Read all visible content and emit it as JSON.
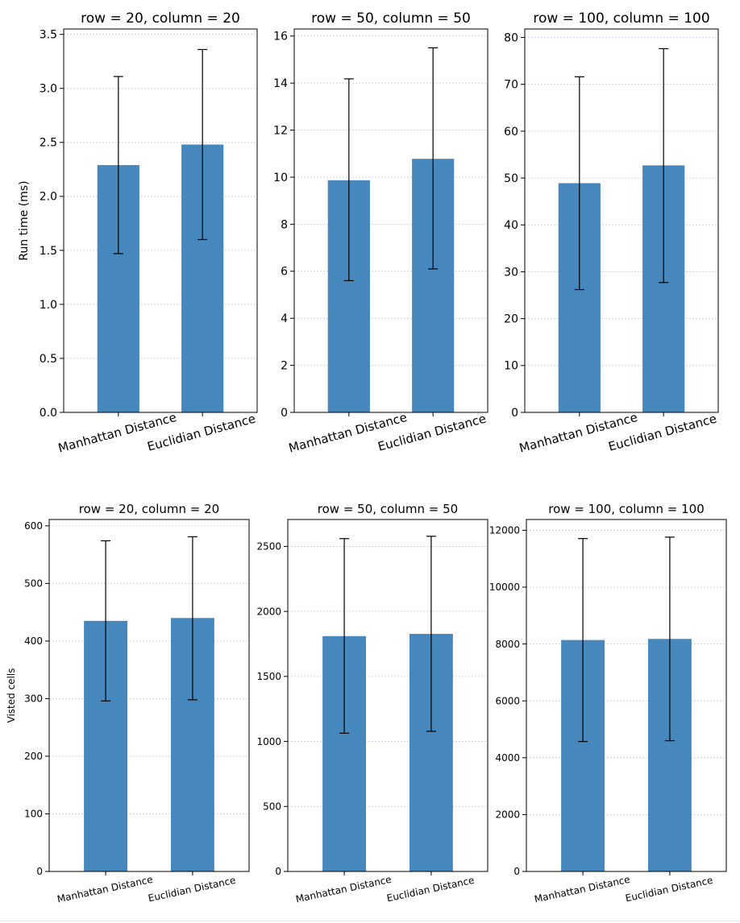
{
  "colors": {
    "bar": "#4687bd",
    "grid": "#c8c8f0",
    "axis": "#000000",
    "error": "#000000"
  },
  "chart_data": [
    {
      "type": "bar",
      "title": "row = 20, column = 20",
      "ylabel": "Run time (ms)",
      "categories": [
        "Manhattan Distance",
        "Euclidian Distance"
      ],
      "values": [
        2.29,
        2.48
      ],
      "errors_low": [
        1.47,
        1.6
      ],
      "errors_high": [
        3.11,
        3.36
      ],
      "ylim": [
        0,
        3.55
      ],
      "yticks": [
        0.0,
        0.5,
        1.0,
        1.5,
        2.0,
        2.5,
        3.0,
        3.5
      ],
      "ytick_labels": [
        "0.0",
        "0.5",
        "1.0",
        "1.5",
        "2.0",
        "2.5",
        "3.0",
        "3.5"
      ],
      "grid": true
    },
    {
      "type": "bar",
      "title": "row = 50, column = 50",
      "ylabel": "",
      "categories": [
        "Manhattan Distance",
        "Euclidian Distance"
      ],
      "values": [
        9.87,
        10.78
      ],
      "errors_low": [
        5.6,
        6.1
      ],
      "errors_high": [
        14.18,
        15.5
      ],
      "ylim": [
        0,
        16.3
      ],
      "yticks": [
        0,
        2,
        4,
        6,
        8,
        10,
        12,
        14,
        16
      ],
      "ytick_labels": [
        "0",
        "2",
        "4",
        "6",
        "8",
        "10",
        "12",
        "14",
        "16"
      ],
      "grid": true
    },
    {
      "type": "bar",
      "title": "row = 100, column = 100",
      "ylabel": "",
      "categories": [
        "Manhattan Distance",
        "Euclidian Distance"
      ],
      "values": [
        48.9,
        52.7
      ],
      "errors_low": [
        26.2,
        27.7
      ],
      "errors_high": [
        71.6,
        77.6
      ],
      "ylim": [
        0,
        81.8
      ],
      "yticks": [
        0,
        10,
        20,
        30,
        40,
        50,
        60,
        70,
        80
      ],
      "ytick_labels": [
        "0",
        "10",
        "20",
        "30",
        "40",
        "50",
        "60",
        "70",
        "80"
      ],
      "grid": true
    },
    {
      "type": "bar",
      "title": "row = 20, column = 20",
      "ylabel": "Visted cells",
      "categories": [
        "Manhattan Distance",
        "Euclidian Distance"
      ],
      "values": [
        435,
        440
      ],
      "errors_low": [
        296,
        298
      ],
      "errors_high": [
        574,
        581
      ],
      "ylim": [
        0,
        611
      ],
      "yticks": [
        0,
        100,
        200,
        300,
        400,
        500,
        600
      ],
      "ytick_labels": [
        "0",
        "100",
        "200",
        "300",
        "400",
        "500",
        "600"
      ],
      "grid": true
    },
    {
      "type": "bar",
      "title": "row = 50, column = 50",
      "ylabel": "",
      "categories": [
        "Manhattan Distance",
        "Euclidian Distance"
      ],
      "values": [
        1810,
        1827
      ],
      "errors_low": [
        1063,
        1078
      ],
      "errors_high": [
        2560,
        2578
      ],
      "ylim": [
        0,
        2707
      ],
      "yticks": [
        0,
        500,
        1000,
        1500,
        2000,
        2500
      ],
      "ytick_labels": [
        "0",
        "500",
        "1000",
        "1500",
        "2000",
        "2500"
      ],
      "grid": true
    },
    {
      "type": "bar",
      "title": "row = 100, column = 100",
      "ylabel": "",
      "categories": [
        "Manhattan Distance",
        "Euclidian Distance"
      ],
      "values": [
        8140,
        8180
      ],
      "errors_low": [
        4570,
        4600
      ],
      "errors_high": [
        11710,
        11760
      ],
      "ylim": [
        0,
        12380
      ],
      "yticks": [
        0,
        2000,
        4000,
        6000,
        8000,
        10000,
        12000
      ],
      "ytick_labels": [
        "0",
        "2000",
        "4000",
        "6000",
        "8000",
        "10000",
        "12000"
      ],
      "grid": true
    }
  ]
}
